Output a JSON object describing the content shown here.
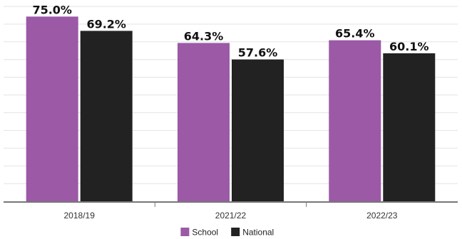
{
  "chart_data": {
    "type": "bar",
    "categories": [
      "2018/19",
      "2021/22",
      "2022/23"
    ],
    "series": [
      {
        "name": "School",
        "values": [
          75.0,
          64.3,
          65.4
        ],
        "labels": [
          "75.0%",
          "64.3%",
          "65.4%"
        ]
      },
      {
        "name": "National",
        "values": [
          69.2,
          57.6,
          60.1
        ],
        "labels": [
          "69.2%",
          "57.6%",
          "60.1%"
        ]
      }
    ],
    "ylim": [
      0,
      80
    ],
    "grid": true,
    "legend": "bottom-center",
    "colors": {
      "School": "#9b59a6",
      "National": "#222222"
    }
  }
}
